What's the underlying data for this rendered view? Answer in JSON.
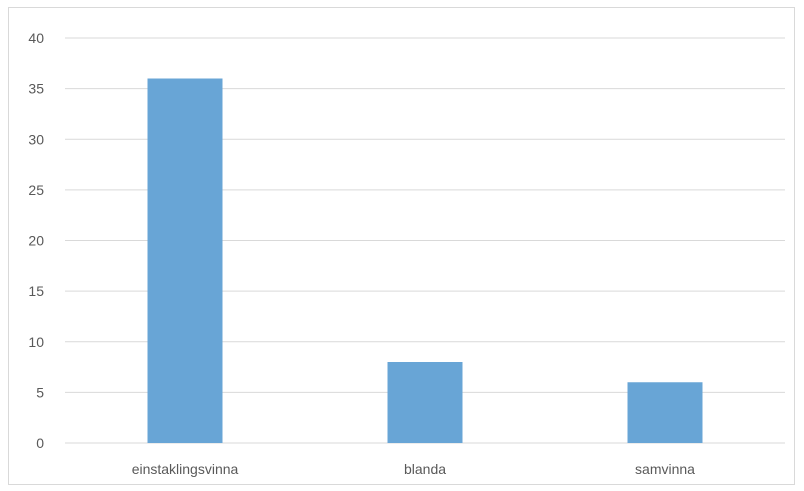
{
  "chart_data": {
    "type": "bar",
    "categories": [
      "einstaklingsvinna",
      "blanda",
      "samvinna"
    ],
    "values": [
      36,
      8,
      6
    ],
    "title": "",
    "xlabel": "",
    "ylabel": "",
    "ylim": [
      0,
      40
    ],
    "yticks": [
      0,
      5,
      10,
      15,
      20,
      25,
      30,
      35,
      40
    ],
    "grid": true,
    "legend": "none",
    "colors": {
      "bar": "#68a5d6",
      "grid": "#d9d9d9",
      "axis": "#d9d9d9",
      "text": "#595959",
      "frame": "#d9d9d9"
    }
  }
}
